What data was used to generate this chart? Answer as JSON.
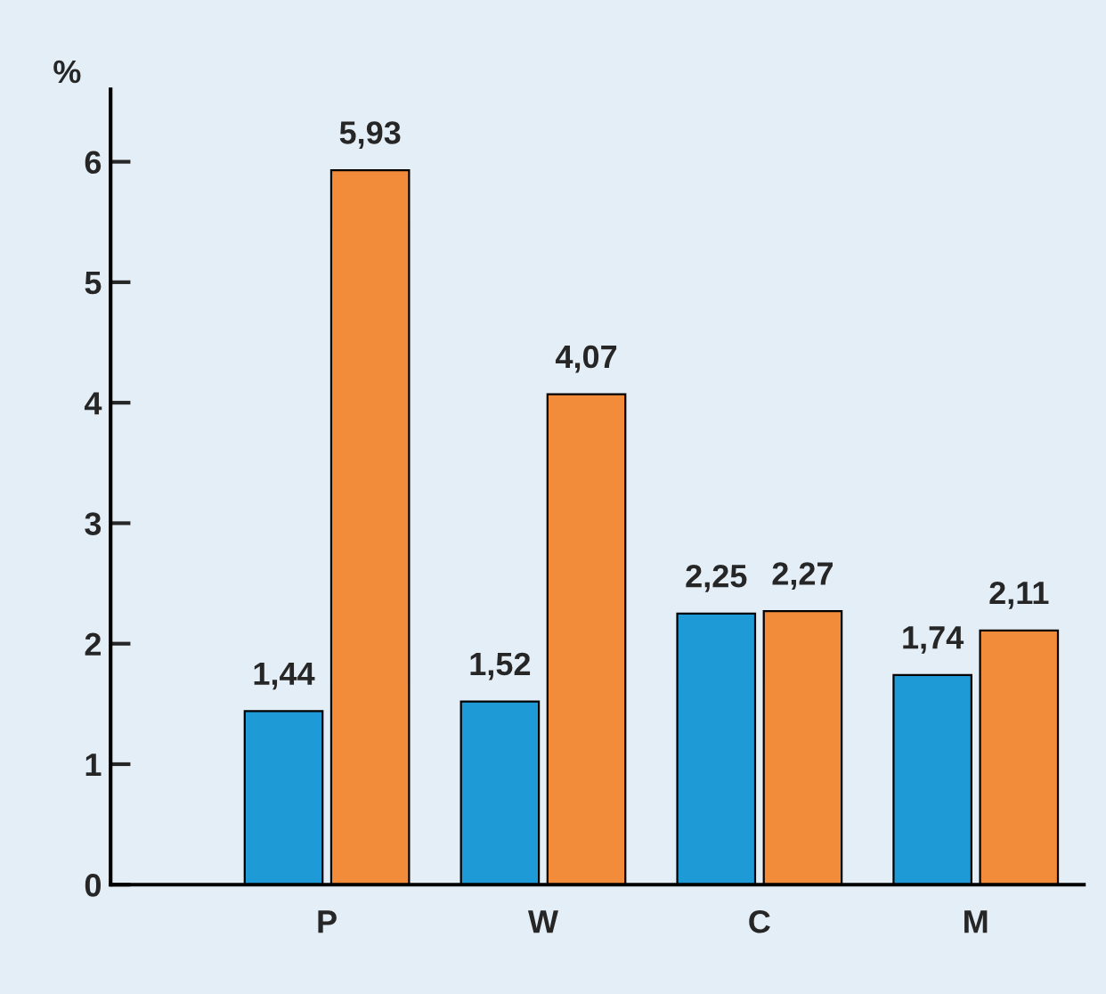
{
  "chart_data": {
    "type": "bar",
    "ylabel": "%",
    "categories": [
      "P",
      "W",
      "C",
      "M"
    ],
    "series": [
      {
        "color": "#1e9bd7",
        "values": [
          1.44,
          1.52,
          2.25,
          1.74
        ],
        "value_labels": [
          "1,44",
          "1,52",
          "2,25",
          "1,74"
        ]
      },
      {
        "color": "#f28c3a",
        "values": [
          5.93,
          4.07,
          2.27,
          2.11
        ],
        "value_labels": [
          "5,93",
          "4,07",
          "2,27",
          "2,11"
        ]
      }
    ],
    "ylim": [
      0,
      6.6
    ],
    "yticks": [
      0,
      1,
      2,
      3,
      4,
      5,
      6
    ],
    "grid": false,
    "legend": false
  }
}
